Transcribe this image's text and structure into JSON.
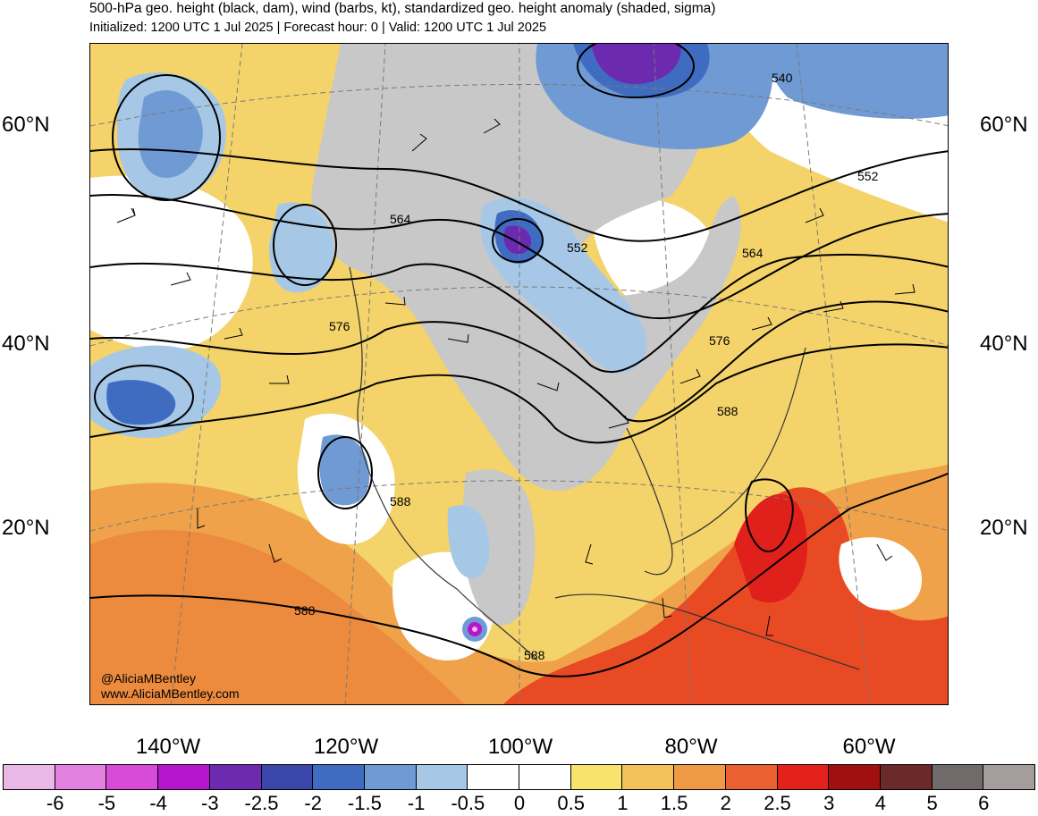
{
  "header": {
    "title": "500-hPa geo. height (black, dam), wind (barbs, kt), standardized geo. height anomaly (shaded, sigma)",
    "subtitle": "Initialized: 1200 UTC 1 Jul 2025 | Forecast hour: 0 | Valid: 1200 UTC 1 Jul 2025"
  },
  "map": {
    "lat_labels": [
      "60°N",
      "40°N",
      "20°N"
    ],
    "lon_labels": [
      "140°W",
      "120°W",
      "100°W",
      "80°W",
      "60°W"
    ],
    "contour_labels": [
      "540",
      "552",
      "564",
      "552",
      "564",
      "576",
      "576",
      "588",
      "588",
      "588",
      "588"
    ],
    "credit_handle": "@AliciaMBentley",
    "credit_url": "www.AliciaMBentley.com"
  },
  "colorbar": {
    "labels": [
      "-6",
      "-5",
      "-4",
      "-3",
      "-2.5",
      "-2",
      "-1.5",
      "-1",
      "-0.5",
      "0",
      "0.5",
      "1",
      "1.5",
      "2",
      "2.5",
      "3",
      "4",
      "5",
      "6"
    ],
    "colors": [
      "#e9b8e6",
      "#e381e0",
      "#d64bd8",
      "#b515cc",
      "#6b2ab0",
      "#3b46aa",
      "#3f6cc0",
      "#6f9ad4",
      "#a6c8e6",
      "#ffffff",
      "#ffffff",
      "#f7e46d",
      "#f3c25b",
      "#ef9a45",
      "#ea6030",
      "#e4201c",
      "#a11010",
      "#6b2a2a",
      "#706a6a",
      "#a59c9c"
    ]
  }
}
